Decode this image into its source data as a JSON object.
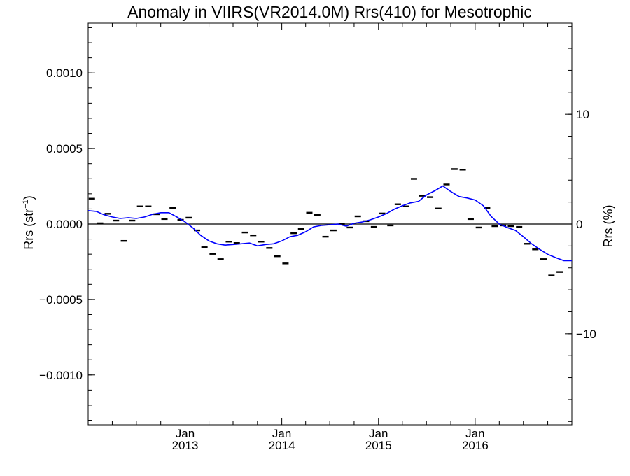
{
  "chart_data": {
    "type": "line",
    "title": "Anomaly in VIIRS(VR2014.0M) Rrs(410) for Mesotrophic",
    "ylabel_left_base": "Rrs (str",
    "ylabel_left_sup": "−1",
    "ylabel_left_end": ")",
    "ylabel_right": "Rrs (%)",
    "xlabel": "",
    "xlim": [
      "2012-01-01",
      "2016-12-31"
    ],
    "ylim": [
      -0.00133,
      0.00133
    ],
    "ylim_right_percent": [
      -18.3,
      18.3
    ],
    "left_ticks": [
      {
        "value": 0.001,
        "label": "0.0010"
      },
      {
        "value": 0.0005,
        "label": "0.0005"
      },
      {
        "value": 0.0,
        "label": "0.0000"
      },
      {
        "value": -0.0005,
        "label": "−0.0005"
      },
      {
        "value": -0.001,
        "label": "−0.0010"
      }
    ],
    "right_ticks": [
      {
        "value": 10,
        "label": "10"
      },
      {
        "value": 0,
        "label": "0"
      },
      {
        "value": -10,
        "label": "−10"
      }
    ],
    "x_ticks": [
      {
        "date": "2013-01-01",
        "month": "Jan",
        "year": "2013"
      },
      {
        "date": "2014-01-01",
        "month": "Jan",
        "year": "2014"
      },
      {
        "date": "2015-01-01",
        "month": "Jan",
        "year": "2015"
      },
      {
        "date": "2016-01-01",
        "month": "Jan",
        "year": "2016"
      }
    ],
    "zero_line": true,
    "series": [
      {
        "kind": "monthly",
        "color": "#000000",
        "points": [
          [
            "2012-01-15",
            0.000168
          ],
          [
            "2012-02-15",
            5e-06
          ],
          [
            "2012-03-15",
            6.8e-05
          ],
          [
            "2012-04-15",
            2.3e-05
          ],
          [
            "2012-05-15",
            -0.000112
          ],
          [
            "2012-06-15",
            2.3e-05
          ],
          [
            "2012-07-15",
            0.000117
          ],
          [
            "2012-08-15",
            0.000117
          ],
          [
            "2012-09-15",
            6.5e-05
          ],
          [
            "2012-10-15",
            3.3e-05
          ],
          [
            "2012-11-15",
            0.000107
          ],
          [
            "2012-12-15",
            2.8e-05
          ],
          [
            "2013-01-15",
            4.2e-05
          ],
          [
            "2013-02-15",
            -4.2e-05
          ],
          [
            "2013-03-15",
            -0.000154
          ],
          [
            "2013-04-15",
            -0.000198
          ],
          [
            "2013-05-15",
            -0.000233
          ],
          [
            "2013-06-15",
            -0.000117
          ],
          [
            "2013-07-15",
            -0.000126
          ],
          [
            "2013-08-15",
            -5.6e-05
          ],
          [
            "2013-09-15",
            -7.5e-05
          ],
          [
            "2013-10-15",
            -0.000117
          ],
          [
            "2013-11-15",
            -0.000159
          ],
          [
            "2013-12-15",
            -0.000214
          ],
          [
            "2014-01-15",
            -0.000261
          ],
          [
            "2014-02-15",
            -6.1e-05
          ],
          [
            "2014-03-15",
            -3.3e-05
          ],
          [
            "2014-04-15",
            7.5e-05
          ],
          [
            "2014-05-15",
            6.1e-05
          ],
          [
            "2014-06-15",
            -8.4e-05
          ],
          [
            "2014-07-15",
            -4.2e-05
          ],
          [
            "2014-08-15",
            0.0
          ],
          [
            "2014-09-15",
            -2.3e-05
          ],
          [
            "2014-10-15",
            5.1e-05
          ],
          [
            "2014-11-15",
            1.9e-05
          ],
          [
            "2014-12-15",
            -1.9e-05
          ],
          [
            "2015-01-15",
            7e-05
          ],
          [
            "2015-02-15",
            -9e-06
          ],
          [
            "2015-03-15",
            0.000131
          ],
          [
            "2015-04-15",
            0.000117
          ],
          [
            "2015-05-15",
            0.000299
          ],
          [
            "2015-06-15",
            0.000187
          ],
          [
            "2015-07-15",
            0.000178
          ],
          [
            "2015-08-15",
            0.000103
          ],
          [
            "2015-09-15",
            0.000262
          ],
          [
            "2015-10-15",
            0.000364
          ],
          [
            "2015-11-15",
            0.00036
          ],
          [
            "2015-12-15",
            3.3e-05
          ],
          [
            "2016-01-15",
            -2.3e-05
          ],
          [
            "2016-02-15",
            0.000107
          ],
          [
            "2016-03-15",
            -1.4e-05
          ],
          [
            "2016-04-15",
            -9e-06
          ],
          [
            "2016-05-15",
            -1.4e-05
          ],
          [
            "2016-06-15",
            -1.9e-05
          ],
          [
            "2016-07-15",
            -0.000131
          ],
          [
            "2016-08-15",
            -0.000168
          ],
          [
            "2016-09-15",
            -0.000233
          ],
          [
            "2016-10-15",
            -0.000341
          ],
          [
            "2016-11-15",
            -0.000318
          ]
        ]
      },
      {
        "kind": "running_mean",
        "color": "#0000ff",
        "points": [
          [
            "2012-01-01",
            8.9e-05
          ],
          [
            "2012-02-01",
            8.4e-05
          ],
          [
            "2012-03-01",
            6.1e-05
          ],
          [
            "2012-04-01",
            4.7e-05
          ],
          [
            "2012-05-01",
            3.7e-05
          ],
          [
            "2012-06-01",
            4.2e-05
          ],
          [
            "2012-07-01",
            3.7e-05
          ],
          [
            "2012-08-01",
            4.7e-05
          ],
          [
            "2012-09-01",
            6.5e-05
          ],
          [
            "2012-10-01",
            7.5e-05
          ],
          [
            "2012-11-01",
            7.5e-05
          ],
          [
            "2012-12-01",
            4.7e-05
          ],
          [
            "2013-01-01",
            1.4e-05
          ],
          [
            "2013-02-01",
            -2.8e-05
          ],
          [
            "2013-03-01",
            -7.5e-05
          ],
          [
            "2013-04-01",
            -0.000112
          ],
          [
            "2013-05-01",
            -0.000131
          ],
          [
            "2013-06-01",
            -0.00014
          ],
          [
            "2013-07-01",
            -0.000136
          ],
          [
            "2013-08-01",
            -0.000131
          ],
          [
            "2013-09-01",
            -0.000126
          ],
          [
            "2013-10-01",
            -0.000145
          ],
          [
            "2013-11-01",
            -0.000136
          ],
          [
            "2013-12-01",
            -0.000131
          ],
          [
            "2014-01-01",
            -0.000112
          ],
          [
            "2014-02-01",
            -8.4e-05
          ],
          [
            "2014-03-01",
            -7.5e-05
          ],
          [
            "2014-04-01",
            -5.1e-05
          ],
          [
            "2014-05-01",
            -1.9e-05
          ],
          [
            "2014-06-01",
            -9e-06
          ],
          [
            "2014-07-01",
            -5e-06
          ],
          [
            "2014-08-01",
            0.0
          ],
          [
            "2014-09-01",
            -1.4e-05
          ],
          [
            "2014-10-01",
            5e-06
          ],
          [
            "2014-11-01",
            1.4e-05
          ],
          [
            "2014-12-01",
            2.8e-05
          ],
          [
            "2015-01-01",
            4.7e-05
          ],
          [
            "2015-02-01",
            7e-05
          ],
          [
            "2015-03-01",
            9.8e-05
          ],
          [
            "2015-04-01",
            0.000121
          ],
          [
            "2015-05-01",
            0.00014
          ],
          [
            "2015-06-01",
            0.00015
          ],
          [
            "2015-07-01",
            0.000192
          ],
          [
            "2015-08-01",
            0.00022
          ],
          [
            "2015-09-01",
            0.000252
          ],
          [
            "2015-10-01",
            0.000215
          ],
          [
            "2015-11-01",
            0.000182
          ],
          [
            "2015-12-01",
            0.000173
          ],
          [
            "2016-01-01",
            0.000159
          ],
          [
            "2016-02-01",
            0.000121
          ],
          [
            "2016-03-01",
            5.1e-05
          ],
          [
            "2016-04-01",
            0.0
          ],
          [
            "2016-05-01",
            -2.3e-05
          ],
          [
            "2016-06-01",
            -4.2e-05
          ],
          [
            "2016-07-01",
            -8.4e-05
          ],
          [
            "2016-08-01",
            -0.000131
          ],
          [
            "2016-09-01",
            -0.000168
          ],
          [
            "2016-10-01",
            -0.000201
          ],
          [
            "2016-11-01",
            -0.000224
          ],
          [
            "2016-12-01",
            -0.000243
          ],
          [
            "2016-12-31",
            -0.000243
          ]
        ]
      }
    ],
    "grid": false,
    "legend": "none"
  }
}
